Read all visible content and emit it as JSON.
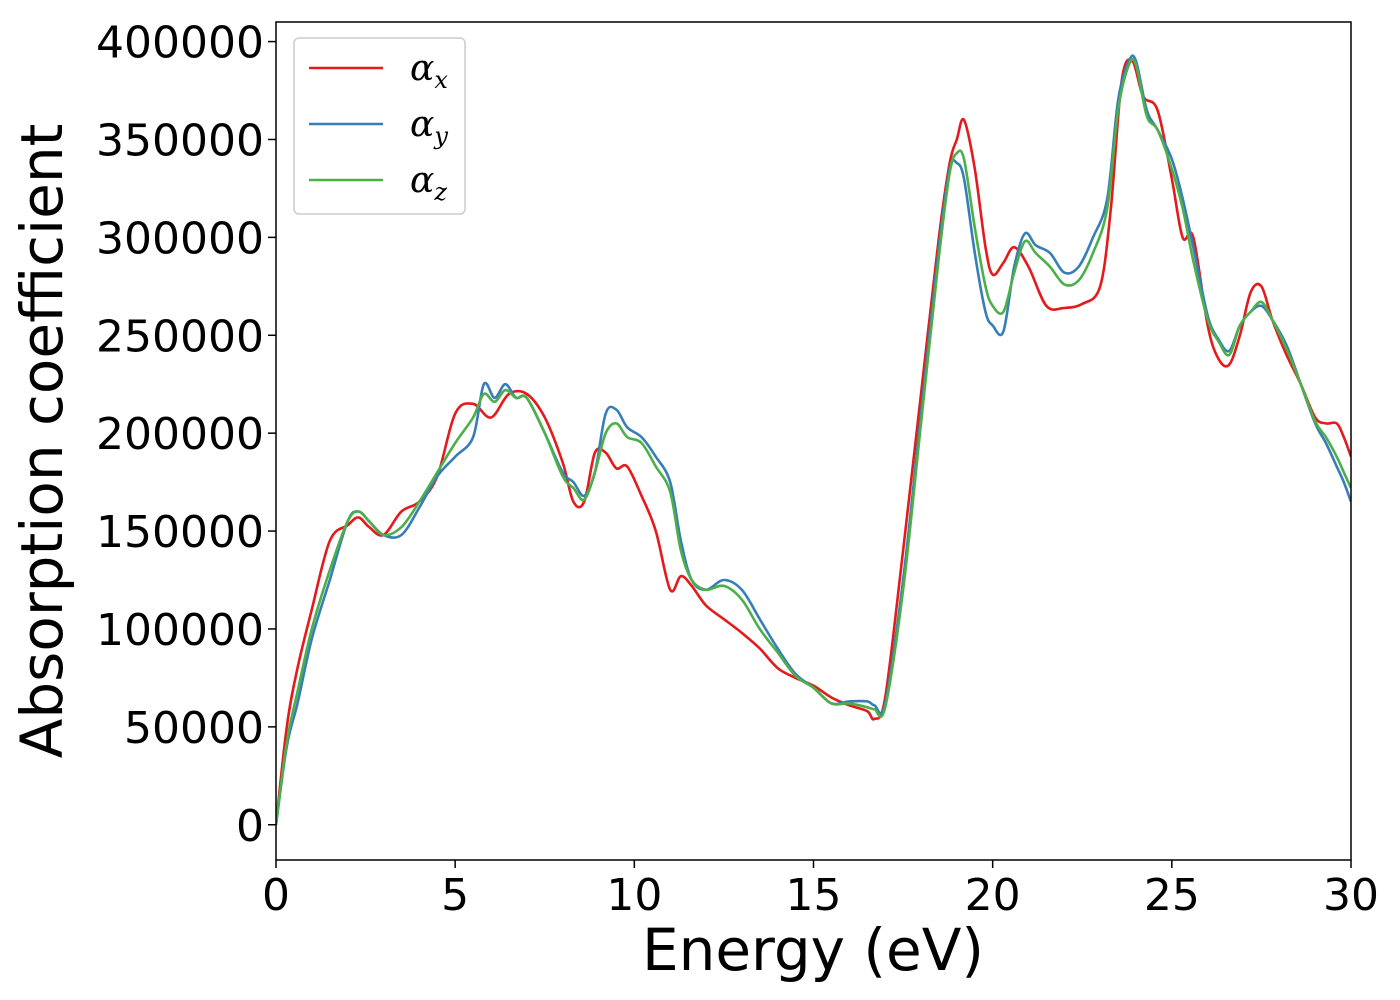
{
  "chart_data": {
    "type": "line",
    "xlabel": "Energy (eV)",
    "ylabel": "Absorption coefficient",
    "xlim": [
      0,
      30
    ],
    "ylim": [
      -18000,
      410000
    ],
    "xticks": [
      0,
      5,
      10,
      15,
      20,
      25,
      30
    ],
    "yticks": [
      0,
      50000,
      100000,
      150000,
      200000,
      250000,
      300000,
      350000,
      400000
    ],
    "legend_position": "top-left",
    "grid": false,
    "series": [
      {
        "name": "α_x",
        "symbol": "α",
        "subscript": "x",
        "color": "#e41a1c",
        "x": [
          0,
          0.3,
          0.6,
          1.0,
          1.5,
          2.0,
          2.3,
          2.6,
          3.0,
          3.5,
          4.0,
          4.5,
          5.0,
          5.5,
          6.0,
          6.5,
          7.0,
          7.5,
          8.0,
          8.3,
          8.6,
          8.9,
          9.2,
          9.5,
          9.8,
          10.2,
          10.6,
          11.0,
          11.3,
          11.6,
          12.0,
          12.5,
          13.0,
          13.5,
          14.0,
          14.5,
          15.0,
          15.5,
          16.0,
          16.5,
          16.7,
          17.0,
          17.5,
          18.0,
          18.5,
          18.8,
          19.0,
          19.2,
          19.5,
          19.8,
          20.0,
          20.3,
          20.6,
          21.0,
          21.5,
          22.0,
          22.5,
          23.0,
          23.3,
          23.6,
          23.9,
          24.2,
          24.6,
          25.0,
          25.3,
          25.6,
          26.0,
          26.3,
          26.6,
          26.9,
          27.2,
          27.5,
          27.8,
          28.2,
          28.6,
          29.0,
          29.3,
          29.6,
          29.8,
          30.0
        ],
        "y": [
          0,
          50000,
          80000,
          110000,
          145000,
          153000,
          157000,
          152000,
          148000,
          160000,
          165000,
          178000,
          210000,
          215000,
          208000,
          220000,
          220000,
          208000,
          185000,
          165000,
          165000,
          190000,
          190000,
          182000,
          183000,
          168000,
          150000,
          120000,
          127000,
          122000,
          112000,
          105000,
          98000,
          90000,
          80000,
          75000,
          71000,
          65000,
          61000,
          58000,
          54000,
          65000,
          140000,
          220000,
          300000,
          338000,
          350000,
          360000,
          335000,
          295000,
          281000,
          287000,
          295000,
          285000,
          265000,
          264000,
          266000,
          275000,
          315000,
          380000,
          390000,
          372000,
          365000,
          330000,
          300000,
          300000,
          255000,
          238000,
          235000,
          250000,
          272000,
          275000,
          258000,
          240000,
          225000,
          208000,
          205000,
          205000,
          198000,
          188000
        ]
      },
      {
        "name": "α_y",
        "symbol": "α",
        "subscript": "y",
        "color": "#377eb8",
        "x": [
          0,
          0.3,
          0.6,
          1.0,
          1.5,
          2.0,
          2.3,
          2.6,
          3.0,
          3.5,
          4.0,
          4.5,
          5.0,
          5.5,
          5.8,
          6.1,
          6.4,
          6.7,
          7.0,
          7.5,
          8.0,
          8.3,
          8.6,
          8.9,
          9.2,
          9.5,
          9.8,
          10.2,
          10.6,
          11.0,
          11.3,
          11.6,
          12.0,
          12.5,
          13.0,
          13.5,
          14.0,
          14.5,
          15.0,
          15.5,
          16.0,
          16.5,
          16.7,
          17.0,
          17.5,
          18.0,
          18.5,
          18.8,
          19.0,
          19.2,
          19.5,
          19.8,
          20.0,
          20.3,
          20.6,
          20.9,
          21.2,
          21.6,
          22.0,
          22.4,
          22.8,
          23.2,
          23.5,
          23.8,
          24.0,
          24.3,
          24.6,
          25.0,
          25.3,
          25.6,
          26.0,
          26.3,
          26.6,
          26.9,
          27.2,
          27.5,
          27.8,
          28.2,
          28.6,
          29.0,
          29.3,
          29.6,
          29.8,
          30.0
        ],
        "y": [
          0,
          40000,
          62000,
          95000,
          125000,
          155000,
          160000,
          155000,
          148000,
          148000,
          162000,
          178000,
          188000,
          198000,
          225000,
          218000,
          225000,
          218000,
          218000,
          200000,
          180000,
          175000,
          168000,
          180000,
          210000,
          212000,
          203000,
          198000,
          188000,
          175000,
          145000,
          125000,
          120000,
          125000,
          120000,
          105000,
          90000,
          77000,
          70000,
          62000,
          63000,
          63000,
          61000,
          62000,
          125000,
          210000,
          295000,
          335000,
          338000,
          330000,
          292000,
          262000,
          255000,
          252000,
          285000,
          302000,
          296000,
          292000,
          282000,
          285000,
          300000,
          320000,
          370000,
          390000,
          390000,
          365000,
          355000,
          340000,
          320000,
          295000,
          260000,
          248000,
          242000,
          255000,
          262000,
          265000,
          258000,
          245000,
          225000,
          205000,
          195000,
          183000,
          175000,
          165000
        ]
      },
      {
        "name": "α_z",
        "symbol": "α",
        "subscript": "z",
        "color": "#4daf4a",
        "x": [
          0,
          0.3,
          0.6,
          1.0,
          1.5,
          2.0,
          2.3,
          2.6,
          3.0,
          3.5,
          4.0,
          4.5,
          5.0,
          5.5,
          5.8,
          6.1,
          6.4,
          6.7,
          7.0,
          7.5,
          8.0,
          8.3,
          8.6,
          8.9,
          9.2,
          9.5,
          9.8,
          10.2,
          10.6,
          11.0,
          11.3,
          11.6,
          12.0,
          12.5,
          13.0,
          13.5,
          14.0,
          14.5,
          15.0,
          15.5,
          16.0,
          16.5,
          16.7,
          17.0,
          17.5,
          18.0,
          18.5,
          18.8,
          19.0,
          19.2,
          19.5,
          19.8,
          20.0,
          20.3,
          20.6,
          20.9,
          21.2,
          21.6,
          22.0,
          22.4,
          22.8,
          23.2,
          23.5,
          23.8,
          24.0,
          24.3,
          24.6,
          25.0,
          25.3,
          25.6,
          26.0,
          26.3,
          26.6,
          26.9,
          27.2,
          27.5,
          27.8,
          28.2,
          28.6,
          29.0,
          29.3,
          29.6,
          29.8,
          30.0
        ],
        "y": [
          0,
          42000,
          68000,
          100000,
          130000,
          155000,
          160000,
          155000,
          148000,
          152000,
          165000,
          180000,
          195000,
          208000,
          220000,
          216000,
          222000,
          218000,
          218000,
          200000,
          178000,
          172000,
          166000,
          180000,
          200000,
          205000,
          198000,
          195000,
          183000,
          170000,
          140000,
          125000,
          120000,
          122000,
          115000,
          100000,
          88000,
          76000,
          70000,
          62000,
          62000,
          60000,
          59000,
          60000,
          120000,
          205000,
          290000,
          333000,
          343000,
          340000,
          305000,
          275000,
          265000,
          262000,
          282000,
          298000,
          292000,
          285000,
          276000,
          278000,
          292000,
          315000,
          365000,
          388000,
          388000,
          362000,
          355000,
          335000,
          315000,
          288000,
          258000,
          247000,
          240000,
          255000,
          262000,
          267000,
          258000,
          243000,
          225000,
          206000,
          198000,
          188000,
          180000,
          172000
        ]
      }
    ]
  }
}
